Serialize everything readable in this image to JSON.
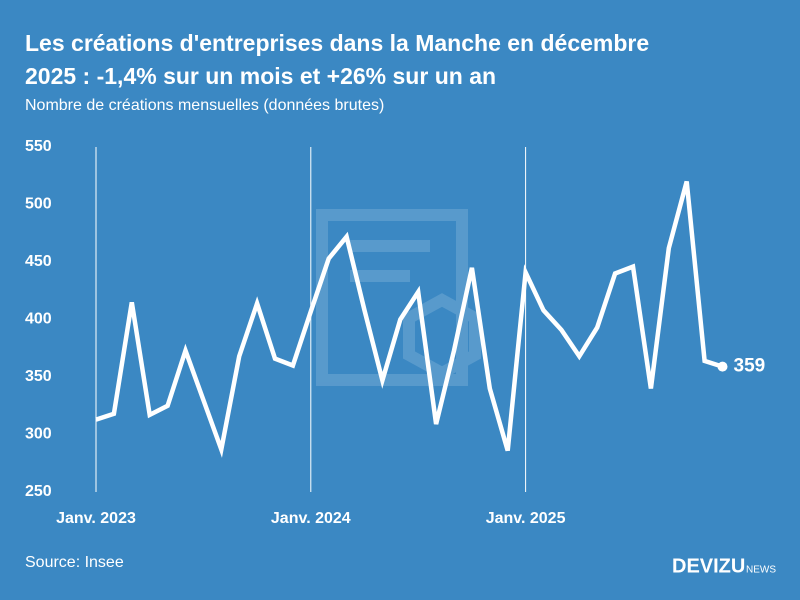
{
  "chart_data": {
    "type": "line",
    "title": "Les créations d'entreprises dans la Manche en décembre",
    "title_line2": "2025 : -1,4% sur un mois et +26% sur un an",
    "subtitle": "Nombre de créations mensuelles (données brutes)",
    "source": "Source: Insee",
    "brand": "DEVIZU",
    "brand_suffix": "NEWS",
    "categories": [
      "Janv. 2023",
      null,
      null,
      null,
      null,
      null,
      null,
      null,
      null,
      null,
      null,
      null,
      "Janv. 2024",
      null,
      null,
      null,
      null,
      null,
      null,
      null,
      null,
      null,
      null,
      null,
      "Janv. 2025",
      null,
      null,
      null,
      null,
      null,
      null,
      null,
      null,
      null,
      null,
      null
    ],
    "series": [
      {
        "name": "Créations",
        "color": "#ffffff",
        "values": [
          313,
          318,
          415,
          317,
          325,
          373,
          330,
          287,
          368,
          414,
          366,
          360,
          407,
          453,
          472,
          408,
          347,
          400,
          424,
          309,
          373,
          445,
          340,
          286,
          441,
          408,
          391,
          368,
          393,
          440,
          446,
          340,
          462,
          520,
          364,
          359
        ]
      }
    ],
    "ylim": [
      250,
      550
    ],
    "yticks": [
      250,
      300,
      350,
      400,
      450,
      500,
      550
    ],
    "grid": false
  }
}
